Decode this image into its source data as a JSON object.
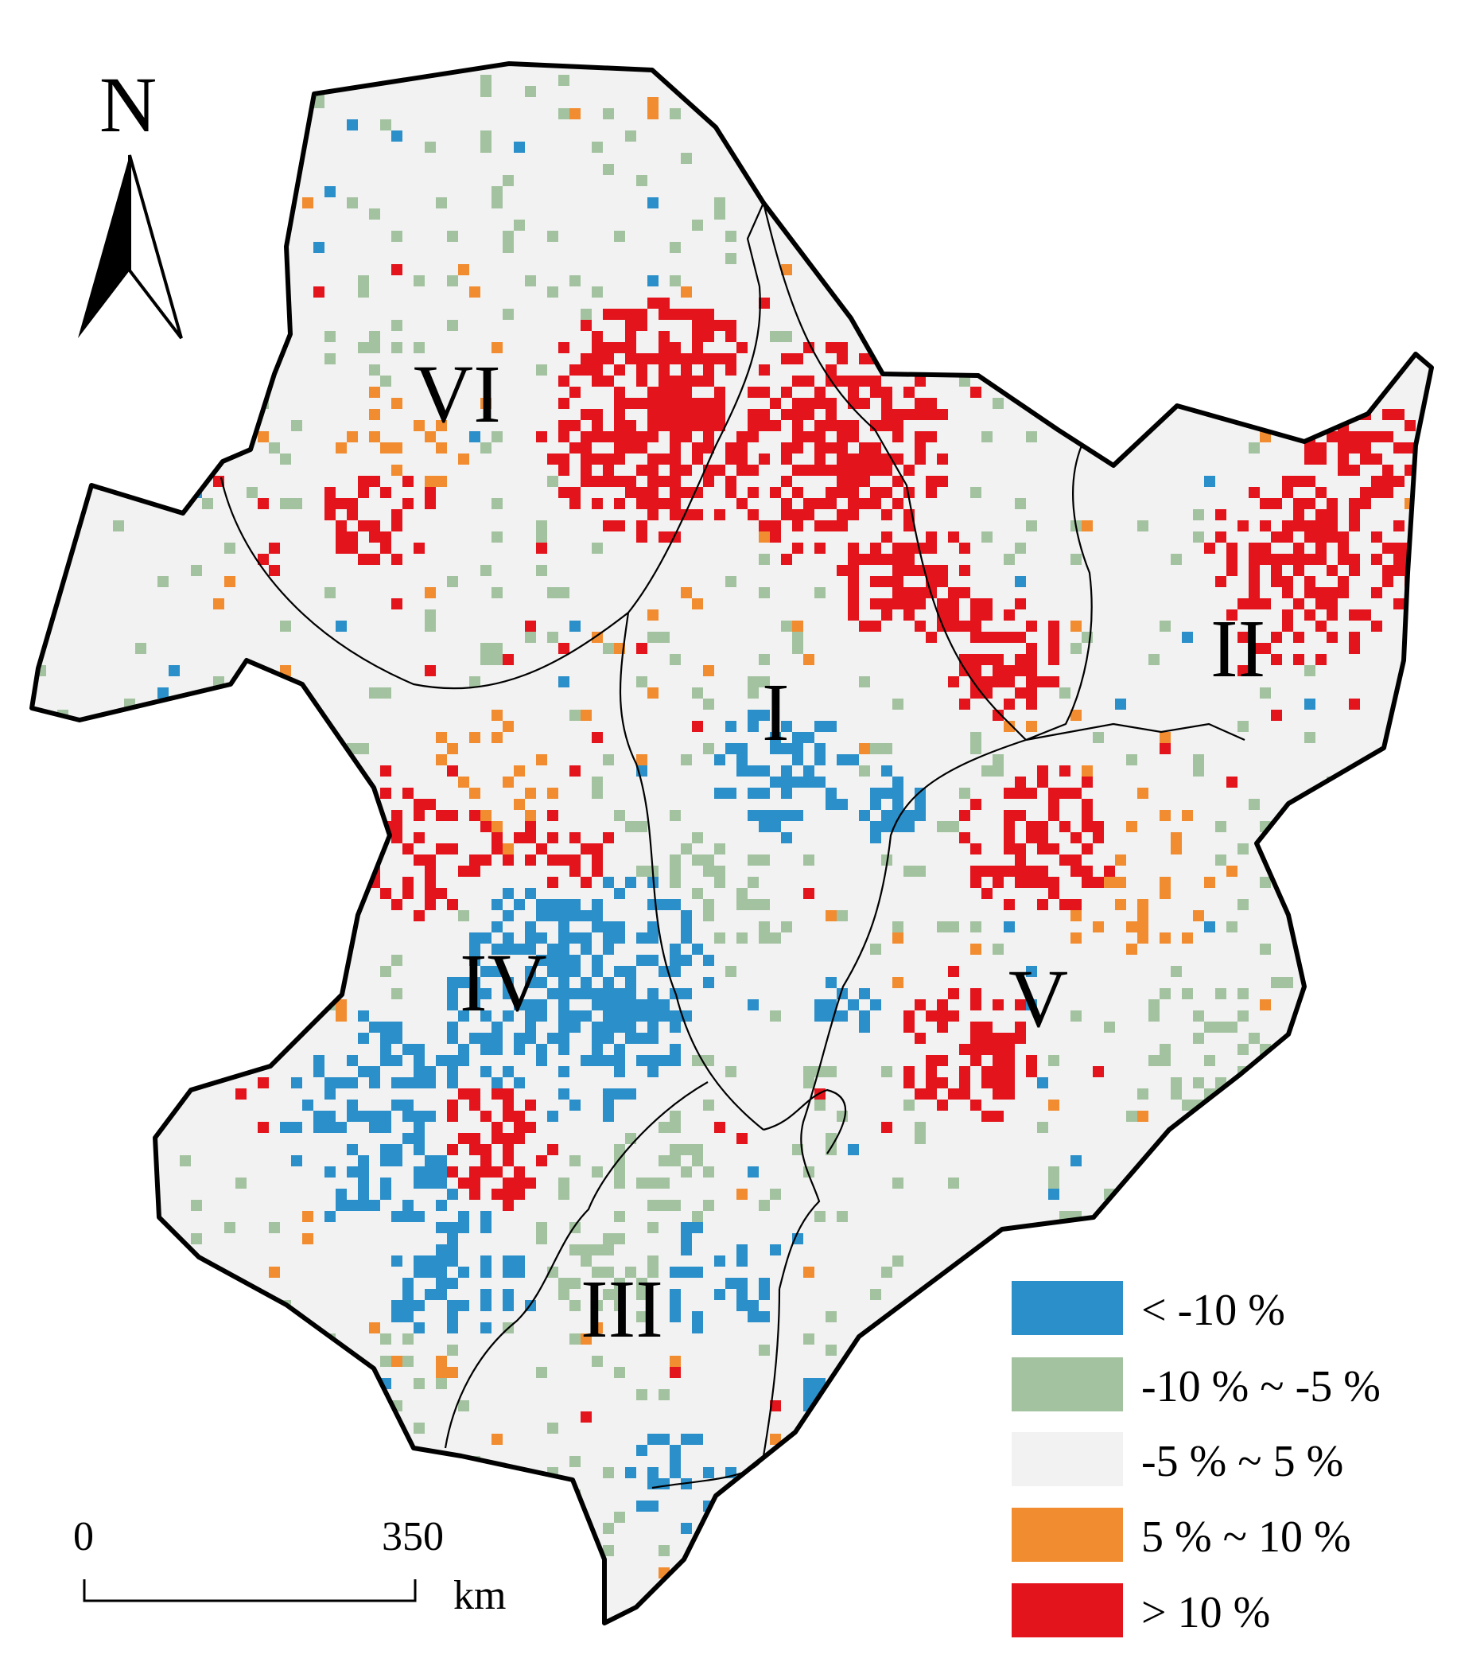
{
  "north_arrow": {
    "label": "N"
  },
  "regions": [
    {
      "id": "I",
      "label": "I"
    },
    {
      "id": "II",
      "label": "II"
    },
    {
      "id": "III",
      "label": "III"
    },
    {
      "id": "IV",
      "label": "IV"
    },
    {
      "id": "V",
      "label": "V"
    },
    {
      "id": "VI",
      "label": "VI"
    }
  ],
  "scale_bar": {
    "start": "0",
    "end": "350",
    "unit": "km"
  },
  "legend": [
    {
      "label": "< -10 %",
      "color": "#2b8fc9"
    },
    {
      "label": "-10 % ~ -5 %",
      "color": "#a3c3a0"
    },
    {
      "label": "-5 % ~ 5 %",
      "color": "#f2f2f2"
    },
    {
      "label": "5 % ~ 10 %",
      "color": "#f28c30"
    },
    {
      "label": "> 10 %",
      "color": "#e3141c"
    }
  ],
  "colors": {
    "outline": "#000000",
    "background": "#ffffff"
  }
}
